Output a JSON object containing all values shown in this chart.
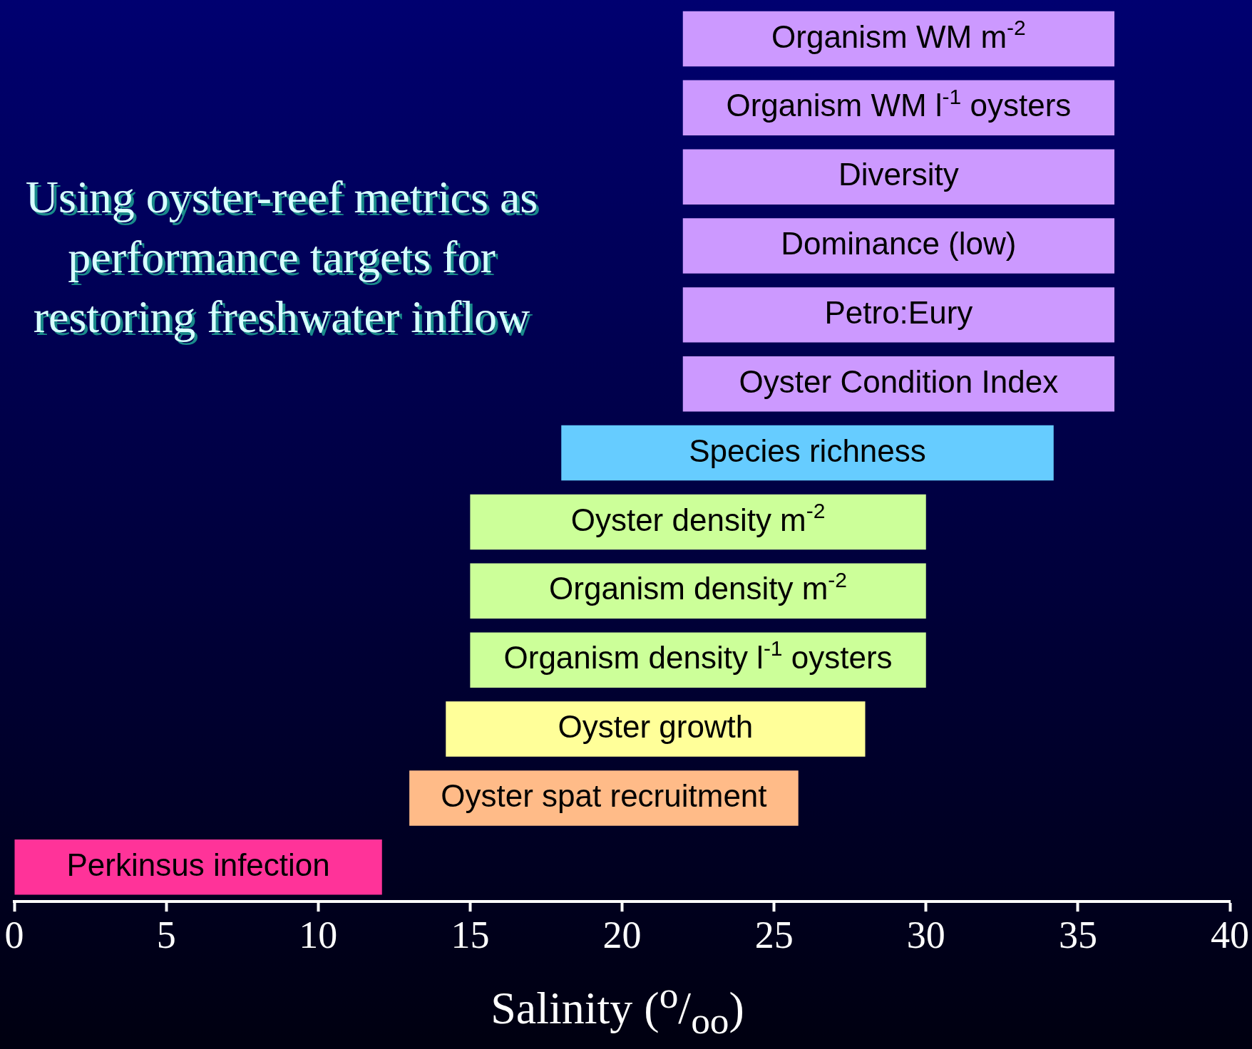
{
  "chart_data": {
    "type": "bar",
    "orientation": "horizontal",
    "title": "Using oyster-reef metrics as performance targets for restoring freshwater inflow",
    "xlabel": "Salinity ($^{o}$/$_{oo}$)",
    "categories": [
      "Organism WM m$^{-2}$",
      "Organism WM l$^{-1}$ oysters",
      "Diversity",
      "Dominance (low)",
      "Petro:Eury",
      "Oyster Condition Index",
      "Species richness",
      "Oyster density m$^{-2}$",
      "Organism density m$^{-2}$",
      "Organism density l$^{-1}$ oysters",
      "Oyster growth",
      "Oyster spat recruitment",
      "Perkinsus infection"
    ],
    "base": [
      22,
      22,
      22,
      22,
      22,
      22,
      18,
      15,
      15,
      15,
      14.2,
      13,
      0
    ],
    "values": [
      14.2,
      14.2,
      14.2,
      14.2,
      14.2,
      14.2,
      16.2,
      15,
      15,
      15,
      13.8,
      12.8,
      12.1
    ],
    "colors": [
      "#cc99ff",
      "#cc99ff",
      "#cc99ff",
      "#cc99ff",
      "#cc99ff",
      "#cc99ff",
      "#66ccff",
      "#ccff99",
      "#ccff99",
      "#ccff99",
      "#ffff99",
      "#ffbb88",
      "#ff3399"
    ],
    "xlim": [
      0,
      40
    ],
    "xticks": [
      0,
      5,
      10,
      15,
      20,
      25,
      30,
      35,
      40
    ],
    "grid": false,
    "legend": false
  }
}
